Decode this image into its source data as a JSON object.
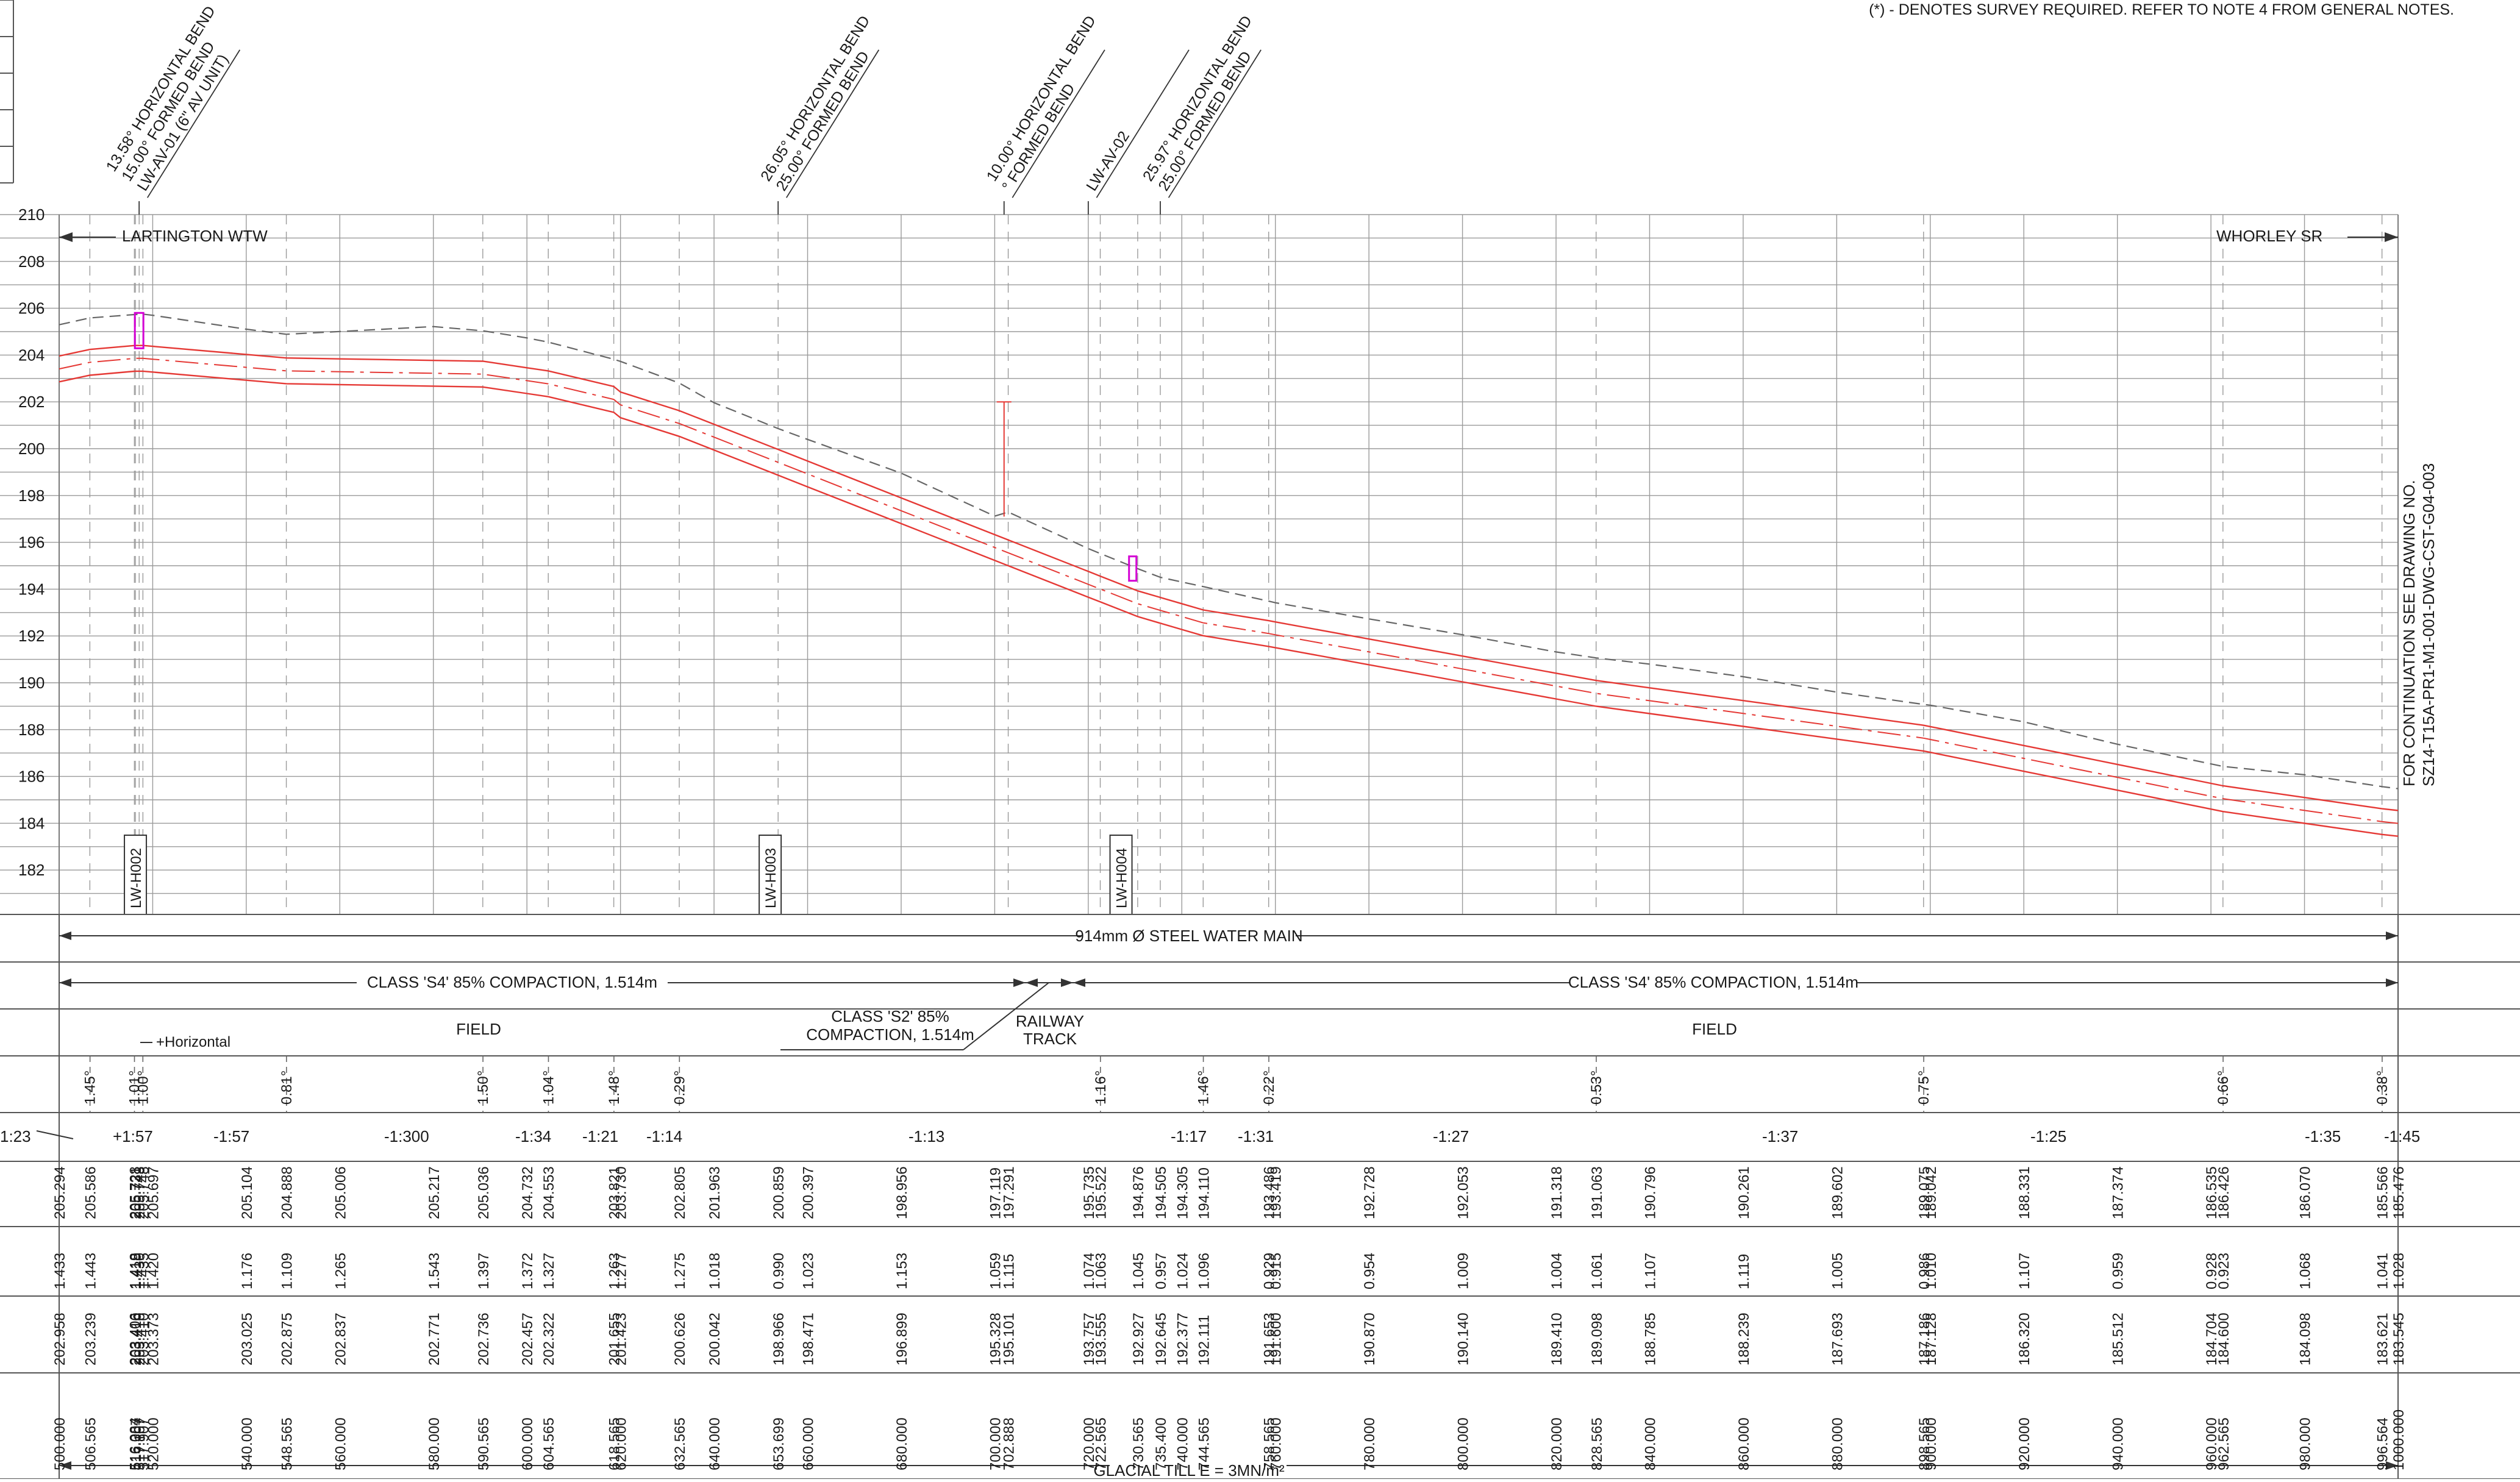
{
  "note": "(*) - DENOTES SURVEY REQUIRED. REFER TO NOTE 4 FROM GENERAL NOTES.",
  "start_label": "LARTINGTON WTW",
  "end_label": "WHORLEY SR",
  "continuation": [
    "FOR CONTINUATION SEE DRAWING NO.",
    "SZ14-T15A-PR1-M1-001-DWG-CST-G04-003"
  ],
  "y_axis_ticks": [
    "210",
    "208",
    "206",
    "204",
    "202",
    "200",
    "198",
    "196",
    "194",
    "192",
    "190",
    "188",
    "186",
    "184",
    "182"
  ],
  "bends": [
    {
      "lines": [
        "13.58° HORIZONTAL BEND",
        "15.00° FORMED BEND",
        "LW-AV-01 (6\" AV UNIT)"
      ]
    },
    {
      "lines": [
        "26.05° HORIZONTAL BEND",
        "25.00° FORMED BEND"
      ]
    },
    {
      "lines": [
        "10.00° HORIZONTAL BEND",
        "° FORMED BEND"
      ]
    },
    {
      "lines": [
        "LW-AV-02"
      ]
    },
    {
      "lines": [
        "25.97° HORIZONTAL BEND",
        "25.00° FORMED BEND"
      ]
    }
  ],
  "holes": [
    "LW-H002",
    "LW-H003",
    "LW-H004"
  ],
  "main_label": "914mm Ø STEEL WATER MAIN",
  "class_left": "CLASS 'S4' 85% COMPACTION, 1.514m",
  "class_right": "CLASS 'S4' 85% COMPACTION, 1.514m",
  "class_mid": [
    "CLASS 'S2' 85%",
    "COMPACTION, 1.514m"
  ],
  "field_left": "FIELD",
  "field_right": "FIELD",
  "railway": [
    "RAILWAY",
    "TRACK"
  ],
  "horizontal_label": "+Horizontal",
  "angles": [
    "1.45°",
    "1.01°",
    "1.00°",
    "0.81°",
    "1.50°",
    "1.04°",
    "1.48°",
    "0.29°",
    "1.16°",
    "1.46°",
    "0.22°",
    "0.53°",
    "0.75°",
    "0.66°",
    "0.38°"
  ],
  "gradients": [
    "1:23",
    "+1:57",
    "-1:57",
    "-1:300",
    "-1:34",
    "-1:21",
    "-1:14",
    "-1:13",
    "-1:17",
    "-1:31",
    "-1:27",
    "-1:37",
    "-1:25",
    "-1:35",
    "-1:45"
  ],
  "geology": "GLACIAL TILL E = 3MN/m²",
  "table": {
    "ground": [
      "205.294",
      "205.586",
      "205.728",
      "205.731",
      "205.743",
      "205.748",
      "205.697",
      "205.104",
      "204.888",
      "205.006",
      "205.217",
      "205.036",
      "204.732",
      "204.553",
      "203.821",
      "203.730",
      "202.805",
      "201.963",
      "200.859",
      "200.397",
      "198.956",
      "197.119",
      "197.291",
      "195.735",
      "195.522",
      "194.876",
      "194.505",
      "194.305",
      "194.110",
      "193.486",
      "193.419",
      "192.728",
      "192.053",
      "191.318",
      "191.063",
      "190.796",
      "190.261",
      "189.602",
      "189.075",
      "189.042",
      "188.331",
      "187.374",
      "186.535",
      "186.426",
      "186.070",
      "185.566",
      "185.476"
    ],
    "depth": [
      "1.433",
      "1.443",
      "1.418",
      "1.419",
      "1.430",
      "1.435",
      "1.420",
      "1.176",
      "1.109",
      "1.265",
      "1.543",
      "1.397",
      "1.372",
      "1.327",
      "1.263",
      "1.277",
      "1.275",
      "1.018",
      "0.990",
      "1.023",
      "1.153",
      "1.059",
      "1.115",
      "1.074",
      "1.063",
      "1.045",
      "0.957",
      "1.024",
      "1.096",
      "0.929",
      "0.915",
      "0.954",
      "1.009",
      "1.004",
      "1.061",
      "1.107",
      "1.119",
      "1.005",
      "0.986",
      "1.010",
      "1.107",
      "0.959",
      "0.928",
      "0.923",
      "1.068",
      "1.041",
      "1.028"
    ],
    "invert": [
      "202.958",
      "203.239",
      "203.406",
      "203.410",
      "203.410",
      "203.410",
      "203.373",
      "203.025",
      "202.875",
      "202.837",
      "202.771",
      "202.736",
      "202.457",
      "202.322",
      "201.655",
      "201.423",
      "200.626",
      "200.042",
      "198.966",
      "198.471",
      "196.899",
      "195.328",
      "195.101",
      "193.757",
      "193.555",
      "192.927",
      "192.645",
      "192.377",
      "192.111",
      "191.653",
      "191.600",
      "190.870",
      "190.140",
      "189.410",
      "189.098",
      "188.785",
      "188.239",
      "187.693",
      "187.186",
      "187.128",
      "186.320",
      "185.512",
      "184.704",
      "184.600",
      "184.098",
      "183.621",
      "183.545"
    ],
    "chainage": [
      "500.000",
      "506.565",
      "516.084",
      "516.307",
      "517.107",
      "517.907",
      "520.000",
      "540.000",
      "548.565",
      "560.000",
      "580.000",
      "590.565",
      "600.000",
      "604.565",
      "618.565",
      "620.000",
      "632.565",
      "640.000",
      "653.699",
      "660.000",
      "680.000",
      "700.000",
      "702.888",
      "720.000",
      "722.565",
      "730.565",
      "735.400",
      "740.000",
      "744.565",
      "758.565",
      "760.000",
      "780.000",
      "800.000",
      "820.000",
      "828.565",
      "840.000",
      "860.000",
      "880.000",
      "898.565",
      "900.000",
      "920.000",
      "940.000",
      "960.000",
      "962.565",
      "980.000",
      "996.564",
      "1000.000"
    ]
  },
  "chart_data": {
    "type": "line",
    "xlabel": "",
    "ylabel": "",
    "ylim": [
      181,
      210
    ],
    "x": [
      500,
      506.565,
      516.084,
      516.307,
      517.107,
      517.907,
      520,
      540,
      548.565,
      560,
      580,
      590.565,
      600,
      604.565,
      618.565,
      620,
      632.565,
      640,
      653.699,
      660,
      680,
      700,
      702.888,
      720,
      722.565,
      730.565,
      735.4,
      740,
      744.565,
      758.565,
      760,
      780,
      800,
      820,
      828.565,
      840,
      860,
      880,
      898.565,
      900,
      920,
      940,
      960,
      962.565,
      980,
      996.564,
      1000
    ],
    "series": [
      {
        "values": [
          205.294,
          205.586,
          205.728,
          205.731,
          205.743,
          205.748,
          205.697,
          205.104,
          204.888,
          205.006,
          205.217,
          205.036,
          204.732,
          204.553,
          203.821,
          203.73,
          202.805,
          201.963,
          200.859,
          200.397,
          198.956,
          197.119,
          197.291,
          195.735,
          195.522,
          194.876,
          194.505,
          194.305,
          194.11,
          193.486,
          193.419,
          192.728,
          192.053,
          191.318,
          191.063,
          190.796,
          190.261,
          189.602,
          189.075,
          189.042,
          188.331,
          187.374,
          186.535,
          186.426,
          186.07,
          185.566,
          185.476
        ]
      },
      {
        "values": [
          202.958,
          203.239,
          203.406,
          203.41,
          203.41,
          203.41,
          203.373,
          203.025,
          202.875,
          202.837,
          202.771,
          202.736,
          202.457,
          202.322,
          201.655,
          201.423,
          200.626,
          200.042,
          198.966,
          198.471,
          196.899,
          195.328,
          195.101,
          193.757,
          193.555,
          192.927,
          192.645,
          192.377,
          192.111,
          191.653,
          191.6,
          190.87,
          190.14,
          189.41,
          189.098,
          188.785,
          188.239,
          187.693,
          187.186,
          187.128,
          186.32,
          185.512,
          184.704,
          184.6,
          184.098,
          183.621,
          183.545
        ]
      }
    ]
  }
}
